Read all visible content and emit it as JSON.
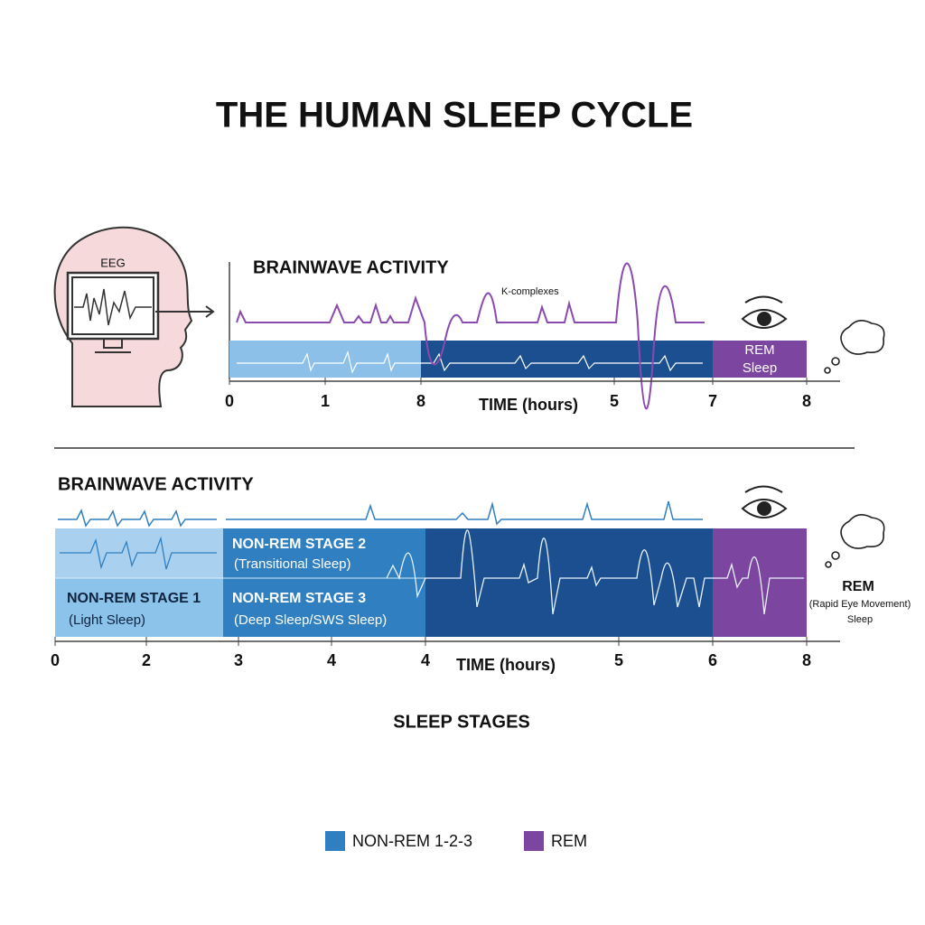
{
  "title": "THE HUMAN SLEEP CYCLE",
  "top_panel": {
    "eeg_label": "EEG",
    "heading": "BRAINWAVE ACTIVITY",
    "annotation": "K-complexes",
    "rem_label": "REM",
    "rem_note": "Sleep",
    "axis_title": "TIME (hours)",
    "axis_labels": [
      "0",
      "1",
      "8",
      "5",
      "7",
      "8"
    ]
  },
  "bottom_panel": {
    "heading": "BRAINWAVE ACTIVITY",
    "stages": [
      {
        "name": "NON-REM STAGE 1",
        "note": "(Light Sleep)"
      },
      {
        "name": "NON-REM STAGE 2",
        "note": "(Transitional Sleep)"
      },
      {
        "name": "NON-REM STAGE 3",
        "note": "(Deep Sleep/SWS Sleep)"
      }
    ],
    "rem": {
      "name": "REM",
      "note": "(Rapid Eye Movement)",
      "note2": "Sleep"
    },
    "axis_title": "TIME (hours)",
    "axis_labels": [
      "0",
      "2",
      "3",
      "4",
      "4",
      "5",
      "6",
      "8"
    ]
  },
  "caption": "SLEEP STAGES",
  "legend": [
    {
      "label": "NON-REM 1-2-3",
      "color": "#2f7fc1"
    },
    {
      "label": "REM",
      "color": "#7b45a0"
    }
  ]
}
